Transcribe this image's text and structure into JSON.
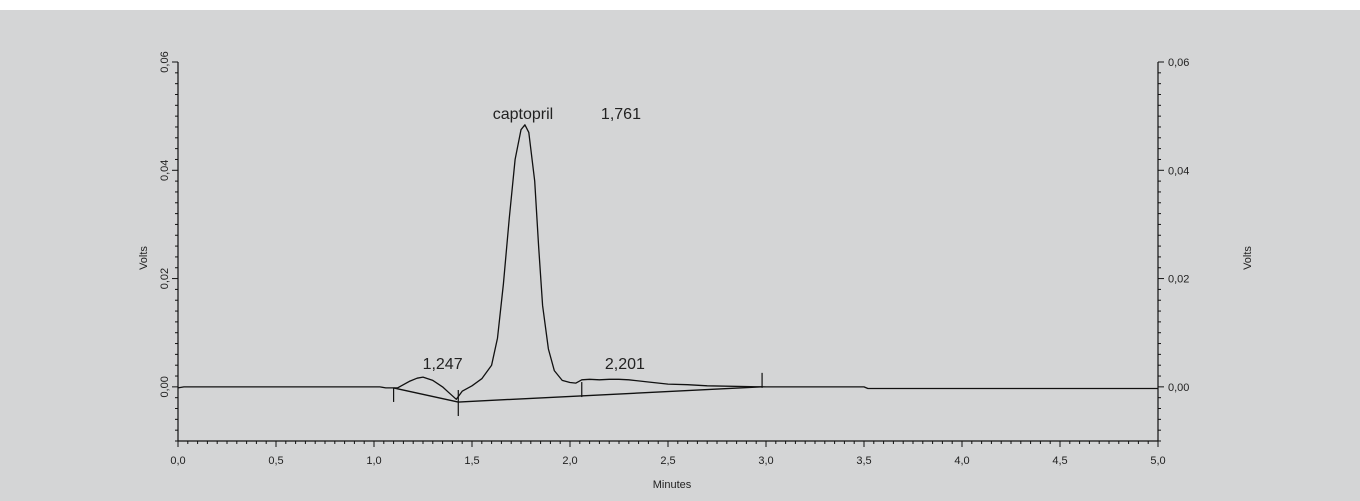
{
  "chart_data": {
    "type": "line",
    "title": "",
    "xlabel": "Minutes",
    "ylabel_left": "Volts",
    "ylabel_right": "Volts",
    "xlim": [
      0,
      5
    ],
    "ylim": [
      -0.01,
      0.06
    ],
    "x_ticks": [
      0,
      0.5,
      1.0,
      1.5,
      2.0,
      2.5,
      3.0,
      3.5,
      4.0,
      4.5,
      5.0
    ],
    "x_tick_labels": [
      "0,0",
      "0,5",
      "1,0",
      "1,5",
      "2,0",
      "2,5",
      "3,0",
      "3,5",
      "4,0",
      "4,5",
      "5,0"
    ],
    "y_ticks": [
      0,
      0.02,
      0.04,
      0.06
    ],
    "y_tick_labels_left": [
      "0,00",
      "0,02",
      "0,04",
      "0,06"
    ],
    "y_tick_labels_right": [
      "0,00",
      "0,02",
      "0,04",
      "0,06"
    ],
    "grid": false,
    "series": [
      {
        "x": [
          0,
          0.03,
          1.03,
          1.06,
          1.12,
          1.18,
          1.22,
          1.25,
          1.3,
          1.35,
          1.38,
          1.42,
          1.45,
          1.5,
          1.55,
          1.6,
          1.63,
          1.66,
          1.69,
          1.72,
          1.75,
          1.77,
          1.79,
          1.82,
          1.84,
          1.86,
          1.89,
          1.92,
          1.96,
          2.0,
          2.03,
          2.06,
          2.1,
          2.15,
          2.2,
          2.25,
          2.3,
          2.4,
          2.5,
          2.6,
          2.7,
          3.0,
          3.25,
          3.5,
          3.52,
          5.0
        ],
        "y": [
          -0.0002,
          0.0,
          0.0,
          -0.0002,
          -0.0002,
          0.001,
          0.0016,
          0.0018,
          0.0012,
          0.0,
          -0.001,
          -0.0023,
          -0.0008,
          0.0002,
          0.0015,
          0.004,
          0.009,
          0.019,
          0.031,
          0.042,
          0.0475,
          0.0484,
          0.047,
          0.038,
          0.026,
          0.015,
          0.007,
          0.003,
          0.0012,
          0.0008,
          0.0007,
          0.0013,
          0.0014,
          0.0013,
          0.0014,
          0.0014,
          0.0013,
          0.0009,
          0.0005,
          0.0004,
          0.0002,
          0.0,
          0.0,
          0.0,
          -0.0003,
          -0.0003
        ]
      }
    ],
    "baselines": [
      {
        "x": [
          1.1,
          1.43
        ],
        "y": [
          -0.0002,
          -0.0028
        ]
      },
      {
        "x": [
          1.43,
          2.98
        ],
        "y": [
          -0.0028,
          0.0
        ]
      }
    ],
    "markers": [
      {
        "x": 1.1,
        "y": -0.0002,
        "dir": "down"
      },
      {
        "x": 1.43,
        "y": -0.0028,
        "dir": "both"
      },
      {
        "x": 2.06,
        "y": -0.0017,
        "dir": "up"
      },
      {
        "x": 2.98,
        "y": 0.0,
        "dir": "up"
      }
    ],
    "annotations": [
      {
        "text": "captopril",
        "x": 1.76,
        "y": 0.0495
      },
      {
        "text": "1,761",
        "x": 2.26,
        "y": 0.0495
      },
      {
        "text": "1,247",
        "x": 1.35,
        "y": 0.0033
      },
      {
        "text": "2,201",
        "x": 2.28,
        "y": 0.0033
      }
    ]
  }
}
